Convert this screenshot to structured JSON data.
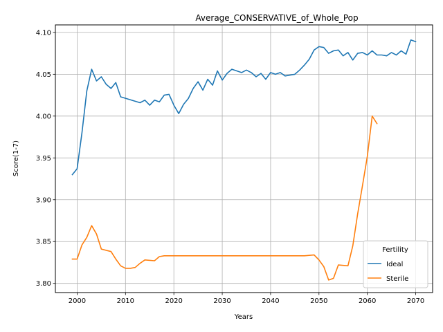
{
  "chart_data": {
    "type": "line",
    "title": "Average_CONSERVATIVE_of_Whole_Pop",
    "xlabel": "Years",
    "ylabel": "Score(1-7)",
    "xlim": [
      1995.5,
      2073.5
    ],
    "ylim": [
      3.789,
      4.109
    ],
    "xticks": [
      2000,
      2010,
      2020,
      2030,
      2040,
      2050,
      2060,
      2070
    ],
    "yticks": [
      3.8,
      3.85,
      3.9,
      3.95,
      4.0,
      4.05,
      4.1
    ],
    "xtick_labels": [
      "2000",
      "2010",
      "2020",
      "2030",
      "2040",
      "2050",
      "2060",
      "2070"
    ],
    "ytick_labels": [
      "3.80",
      "3.85",
      "3.90",
      "3.95",
      "4.00",
      "4.05",
      "4.10"
    ],
    "grid": true,
    "legend": {
      "title": "Fertility",
      "position": "lower right"
    },
    "colors": {
      "Ideal": "#1f77b4",
      "Sterile": "#ff7f0e"
    },
    "series": [
      {
        "name": "Ideal",
        "x": [
          1999,
          2000,
          2001,
          2002,
          2003,
          2004,
          2005,
          2006,
          2007,
          2008,
          2009,
          2013,
          2014,
          2015,
          2016,
          2017,
          2018,
          2019,
          2020,
          2021,
          2022,
          2023,
          2024,
          2025,
          2026,
          2027,
          2028,
          2029,
          2030,
          2031,
          2032,
          2033,
          2034,
          2035,
          2036,
          2037,
          2038,
          2039,
          2040,
          2041,
          2042,
          2043,
          2044,
          2045,
          2046,
          2047,
          2048,
          2049,
          2050,
          2051,
          2052,
          2053,
          2054,
          2055,
          2056,
          2057,
          2058,
          2059,
          2060,
          2061,
          2062,
          2063,
          2064,
          2065,
          2066,
          2067,
          2068,
          2069,
          2070
        ],
        "values": [
          3.93,
          3.937,
          3.98,
          4.03,
          4.056,
          4.042,
          4.047,
          4.038,
          4.033,
          4.04,
          4.023,
          4.016,
          4.019,
          4.013,
          4.019,
          4.017,
          4.025,
          4.026,
          4.013,
          4.003,
          4.014,
          4.021,
          4.033,
          4.041,
          4.031,
          4.044,
          4.037,
          4.054,
          4.043,
          4.051,
          4.056,
          4.054,
          4.052,
          4.055,
          4.052,
          4.047,
          4.051,
          4.044,
          4.052,
          4.05,
          4.052,
          4.048,
          4.049,
          4.05,
          4.055,
          4.061,
          4.068,
          4.079,
          4.083,
          4.082,
          4.075,
          4.078,
          4.079,
          4.072,
          4.076,
          4.067,
          4.075,
          4.076,
          4.073,
          4.078,
          4.073,
          4.073,
          4.072,
          4.076,
          4.073,
          4.078,
          4.074,
          4.091,
          4.089
        ]
      },
      {
        "name": "Sterile",
        "x": [
          1999,
          2000,
          2001,
          2002,
          2003,
          2004,
          2005,
          2007,
          2008,
          2009,
          2010,
          2011,
          2012,
          2013,
          2014,
          2016,
          2017,
          2018,
          2020,
          2025,
          2030,
          2040,
          2047,
          2049,
          2050,
          2051,
          2052,
          2053,
          2054,
          2056,
          2057,
          2058,
          2059,
          2060,
          2061,
          2062
        ],
        "values": [
          3.829,
          3.829,
          3.846,
          3.855,
          3.869,
          3.859,
          3.841,
          3.838,
          3.829,
          3.821,
          3.818,
          3.818,
          3.819,
          3.824,
          3.828,
          3.827,
          3.832,
          3.833,
          3.833,
          3.833,
          3.833,
          3.833,
          3.833,
          3.834,
          3.828,
          3.82,
          3.804,
          3.806,
          3.822,
          3.821,
          3.845,
          3.883,
          3.917,
          3.952,
          4.0,
          3.991
        ]
      }
    ]
  }
}
